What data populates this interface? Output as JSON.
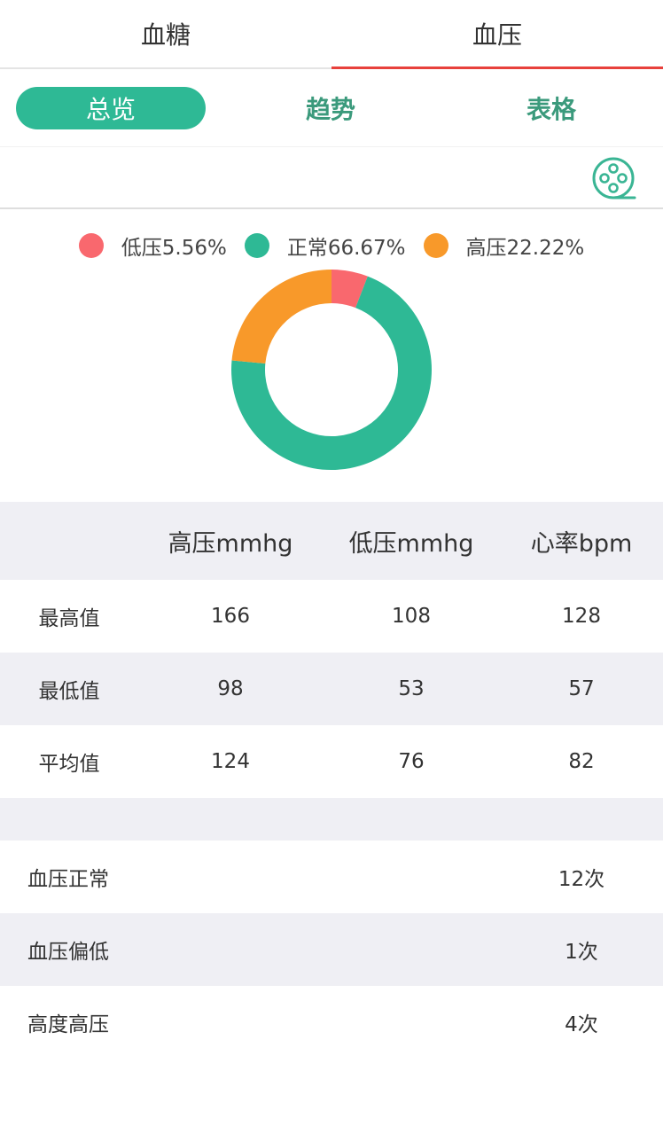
{
  "top_tabs": [
    {
      "label": "血糖"
    },
    {
      "label": "血压"
    }
  ],
  "sub_tabs": [
    {
      "label": "总览"
    },
    {
      "label": "趋势"
    },
    {
      "label": "表格"
    }
  ],
  "toolbar": {
    "icon": "film-reel-icon"
  },
  "colors": {
    "accent": "#2eb995",
    "tab_underline": "#e8413c",
    "low": "#f9686e",
    "normal": "#2eb995",
    "high": "#f8992a"
  },
  "chart_data": {
    "type": "pie",
    "donut": true,
    "legend_position": "top",
    "series": [
      {
        "name": "低压",
        "label": "低压5.56%",
        "value": 5.56,
        "color": "#f9686e"
      },
      {
        "name": "正常",
        "label": "正常66.67%",
        "value": 66.67,
        "color": "#2eb995"
      },
      {
        "name": "高压",
        "label": "高压22.22%",
        "value": 22.22,
        "color": "#f8992a"
      }
    ]
  },
  "stats": {
    "headers": [
      "",
      "高压mmhg",
      "低压mmhg",
      "心率bpm"
    ],
    "rows": [
      {
        "label": "最高值",
        "values": [
          "166",
          "108",
          "128"
        ]
      },
      {
        "label": "最低值",
        "values": [
          "98",
          "53",
          "57"
        ]
      },
      {
        "label": "平均值",
        "values": [
          "124",
          "76",
          "82"
        ]
      }
    ]
  },
  "counts": [
    {
      "label": "血压正常",
      "value": "12次"
    },
    {
      "label": "血压偏低",
      "value": "1次"
    },
    {
      "label": "高度高压",
      "value": "4次"
    }
  ]
}
